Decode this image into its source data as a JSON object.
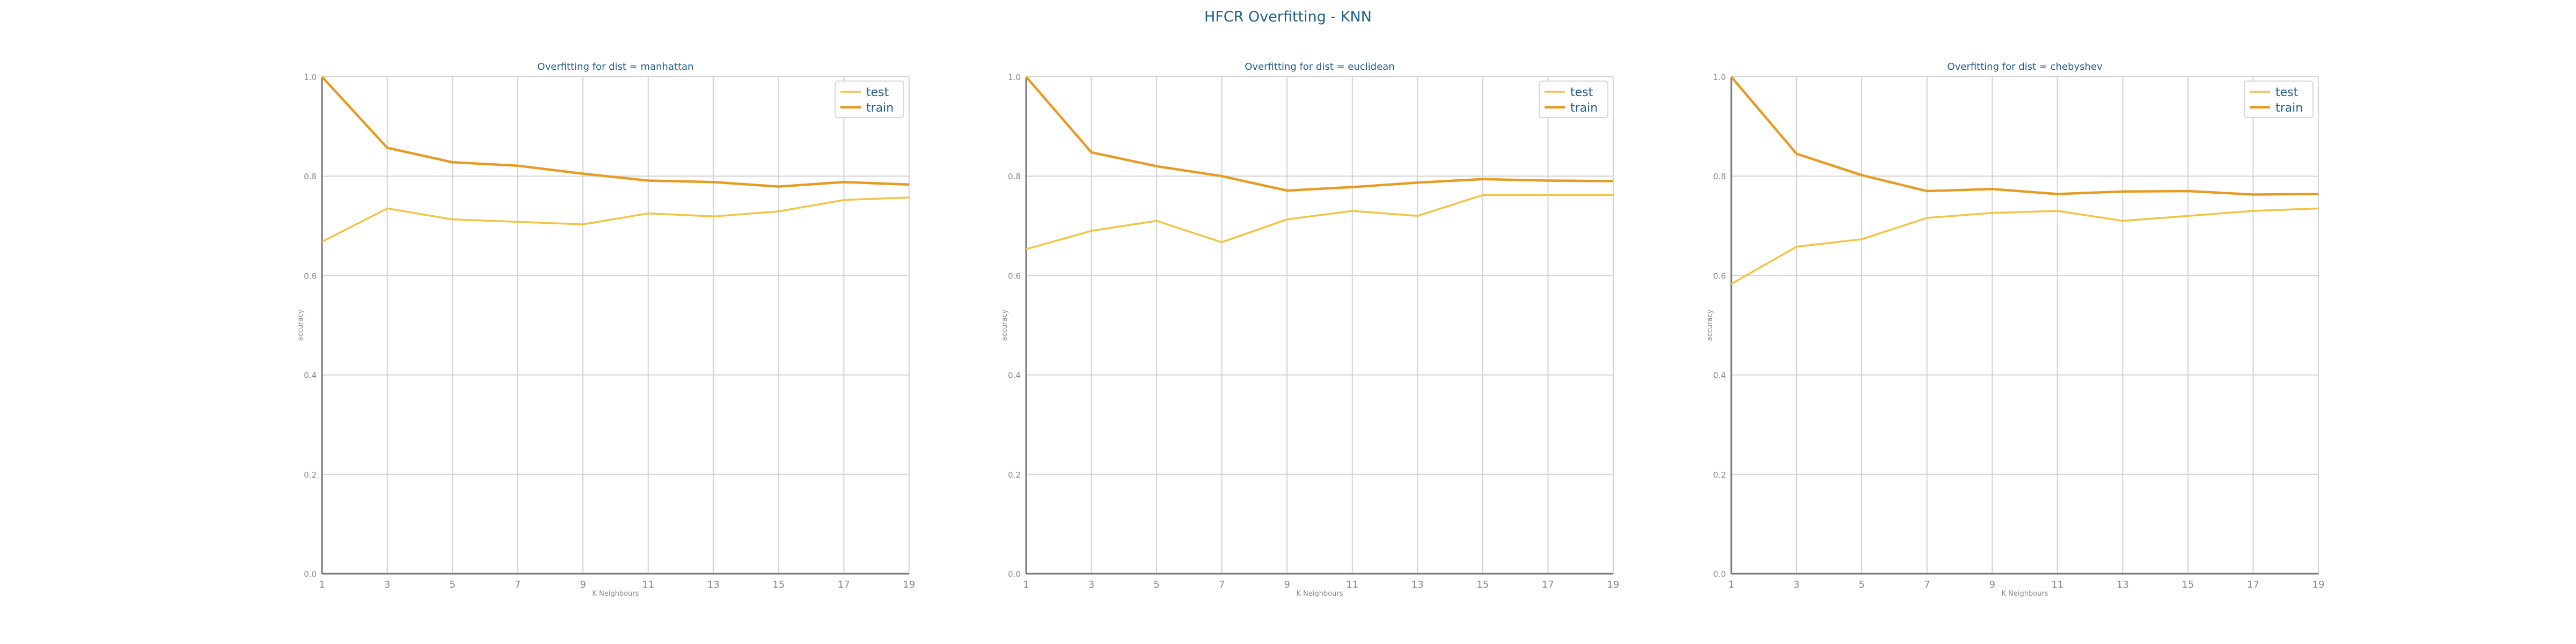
{
  "figure": {
    "title": "HFCR Overfitting - KNN"
  },
  "colors": {
    "title": "#1f5f8b",
    "test": "#f2c446",
    "train": "#e89b22",
    "grid": "#d3d3d3",
    "axis": "#777777",
    "tick_label": "#8a8a8a"
  },
  "chart_data": [
    {
      "type": "line",
      "title": "Overfitting for dist = manhattan",
      "xlabel": "K Neighbours",
      "ylabel": "accuracy",
      "x": [
        1,
        3,
        5,
        7,
        9,
        11,
        13,
        15,
        17,
        19
      ],
      "ylim": [
        0.0,
        1.0
      ],
      "yticks": [
        "0.0",
        "0.2",
        "0.4",
        "0.6",
        "0.8",
        "1.0"
      ],
      "grid": true,
      "legend": "top-right",
      "series": [
        {
          "name": "test",
          "values": [
            0.668,
            0.735,
            0.713,
            0.708,
            0.703,
            0.725,
            0.719,
            0.729,
            0.752,
            0.757
          ]
        },
        {
          "name": "train",
          "values": [
            1.0,
            0.857,
            0.828,
            0.821,
            0.805,
            0.791,
            0.788,
            0.779,
            0.788,
            0.783
          ]
        }
      ]
    },
    {
      "type": "line",
      "title": "Overfitting for dist = euclidean",
      "xlabel": "K Neighbours",
      "ylabel": "accuracy",
      "x": [
        1,
        3,
        5,
        7,
        9,
        11,
        13,
        15,
        17,
        19
      ],
      "ylim": [
        0.0,
        1.0
      ],
      "yticks": [
        "0.0",
        "0.2",
        "0.4",
        "0.6",
        "0.8",
        "1.0"
      ],
      "grid": true,
      "legend": "top-right",
      "series": [
        {
          "name": "test",
          "values": [
            0.653,
            0.69,
            0.71,
            0.667,
            0.713,
            0.73,
            0.72,
            0.762,
            0.762,
            0.762
          ]
        },
        {
          "name": "train",
          "values": [
            1.0,
            0.848,
            0.82,
            0.8,
            0.771,
            0.778,
            0.787,
            0.794,
            0.791,
            0.79
          ]
        }
      ]
    },
    {
      "type": "line",
      "title": "Overfitting for dist = chebyshev",
      "xlabel": "K Neighbours",
      "ylabel": "accuracy",
      "x": [
        1,
        3,
        5,
        7,
        9,
        11,
        13,
        15,
        17,
        19
      ],
      "ylim": [
        0.0,
        1.0
      ],
      "yticks": [
        "0.0",
        "0.2",
        "0.4",
        "0.6",
        "0.8",
        "1.0"
      ],
      "grid": true,
      "legend": "top-right",
      "series": [
        {
          "name": "test",
          "values": [
            0.583,
            0.658,
            0.673,
            0.716,
            0.726,
            0.73,
            0.71,
            0.72,
            0.73,
            0.735
          ]
        },
        {
          "name": "train",
          "values": [
            1.0,
            0.845,
            0.802,
            0.77,
            0.774,
            0.764,
            0.769,
            0.77,
            0.763,
            0.764
          ]
        }
      ]
    }
  ]
}
